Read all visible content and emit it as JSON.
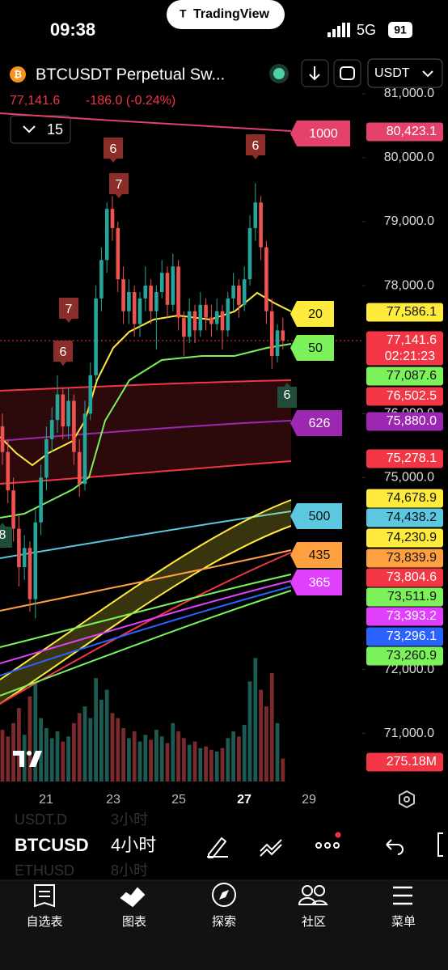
{
  "status_bar": {
    "time": "09:38",
    "app": "TradingView",
    "network": "5G",
    "battery": "91"
  },
  "header": {
    "symbol": "BTCUSDT Perpetual Sw...",
    "currency": "USDT",
    "quote": "77,141.6",
    "change": "-186.0 (-0.24%)",
    "interval": "15"
  },
  "chart": {
    "ylim": [
      70250,
      81200
    ],
    "yticks": [
      {
        "value": 81000,
        "label": "81,000.0"
      },
      {
        "value": 80000,
        "label": "80,000.0"
      },
      {
        "value": 79000,
        "label": "79,000.0"
      },
      {
        "value": 78000,
        "label": "78,000.0"
      },
      {
        "value": 76000,
        "label": "76,000.0"
      },
      {
        "value": 75000,
        "label": "75,000.0"
      },
      {
        "value": 72000,
        "label": "72,000.0"
      },
      {
        "value": 71000,
        "label": "71,000.0"
      }
    ],
    "dates": [
      "21",
      "23",
      "25",
      "27",
      "29"
    ],
    "candles": [
      [
        75800,
        76000,
        75200,
        75400
      ],
      [
        75400,
        75600,
        74600,
        74800
      ],
      [
        74800,
        75000,
        74000,
        74200
      ],
      [
        74200,
        74400,
        73300,
        73600
      ],
      [
        73600,
        74100,
        73400,
        73900
      ],
      [
        73900,
        74000,
        72900,
        73100
      ],
      [
        73100,
        74500,
        72800,
        74300
      ],
      [
        74300,
        75200,
        74100,
        75000
      ],
      [
        75000,
        75800,
        74800,
        75600
      ],
      [
        75600,
        76100,
        75400,
        75900
      ],
      [
        75900,
        76600,
        75700,
        76300
      ],
      [
        76300,
        76400,
        75600,
        75800
      ],
      [
        75800,
        76400,
        75600,
        76200
      ],
      [
        76200,
        76300,
        75200,
        75400
      ],
      [
        75400,
        75600,
        74700,
        74900
      ],
      [
        74900,
        76200,
        74800,
        76000
      ],
      [
        76000,
        76800,
        75900,
        76600
      ],
      [
        76600,
        78000,
        76500,
        77800
      ],
      [
        77800,
        78600,
        77600,
        78400
      ],
      [
        78400,
        79300,
        78200,
        79200
      ],
      [
        79200,
        79400,
        78700,
        78900
      ],
      [
        78900,
        79000,
        77900,
        78100
      ],
      [
        78100,
        78300,
        77400,
        77600
      ],
      [
        77600,
        78100,
        77400,
        77900
      ],
      [
        77900,
        78000,
        77200,
        77400
      ],
      [
        77400,
        77900,
        77200,
        77800
      ],
      [
        77800,
        78300,
        77600,
        78000
      ],
      [
        78000,
        78100,
        77400,
        77600
      ],
      [
        77600,
        78000,
        77000,
        77900
      ],
      [
        77900,
        78400,
        77800,
        78200
      ],
      [
        78200,
        78300,
        77500,
        77700
      ],
      [
        77700,
        78500,
        77600,
        78300
      ],
      [
        78300,
        78400,
        77300,
        77500
      ],
      [
        77500,
        77600,
        76900,
        77200
      ],
      [
        77200,
        77800,
        77100,
        77600
      ],
      [
        77600,
        77700,
        77100,
        77300
      ],
      [
        77300,
        77900,
        77200,
        77700
      ],
      [
        77700,
        77800,
        77300,
        77500
      ],
      [
        77500,
        77700,
        77200,
        77400
      ],
      [
        77400,
        77800,
        77300,
        77600
      ],
      [
        77600,
        77700,
        77000,
        77300
      ],
      [
        77300,
        77900,
        77200,
        77800
      ],
      [
        77800,
        78200,
        77600,
        78000
      ],
      [
        78000,
        78100,
        77500,
        77700
      ],
      [
        77700,
        78300,
        77600,
        78100
      ],
      [
        78100,
        79100,
        78000,
        78900
      ],
      [
        78900,
        79600,
        78700,
        79300
      ],
      [
        79300,
        79400,
        78400,
        78600
      ],
      [
        78600,
        78700,
        77400,
        77600
      ],
      [
        77600,
        77800,
        76700,
        76900
      ],
      [
        76900,
        77400,
        76800,
        77300
      ],
      [
        77300,
        77500,
        77000,
        77141.6
      ]
    ],
    "volumes": [
      620,
      540,
      700,
      880,
      560,
      1020,
      1180,
      760,
      640,
      520,
      600,
      480,
      540,
      700,
      820,
      900,
      760,
      1240,
      980,
      1100,
      820,
      760,
      640,
      520,
      600,
      480,
      560,
      500,
      620,
      540,
      460,
      700,
      600,
      520,
      440,
      480,
      400,
      420,
      380,
      360,
      400,
      520,
      600,
      540,
      680,
      1200,
      1480,
      1100,
      900,
      1300,
      700,
      275.18
    ],
    "price_tags": [
      {
        "text": "80,423.1",
        "color": "#e5426b"
      },
      {
        "text": "77,586.1",
        "color": "#ffeb3b"
      },
      {
        "text": "77,141.6",
        "color": "#f23645"
      },
      {
        "text": "77,087.6",
        "color": "#7cf25a"
      },
      {
        "text": "76,502.5",
        "color": "#f23645"
      },
      {
        "text": "75,880.0",
        "color": "#9c27b0"
      },
      {
        "text": "75,278.1",
        "color": "#f23645"
      },
      {
        "text": "74,678.9",
        "color": "#ffeb3b"
      },
      {
        "text": "74,438.2",
        "color": "#5bc8e0"
      },
      {
        "text": "74,230.9",
        "color": "#ffeb3b"
      },
      {
        "text": "73,839.9",
        "color": "#ffa040"
      },
      {
        "text": "73,804.6",
        "color": "#f23645"
      },
      {
        "text": "73,511.9",
        "color": "#7cf25a"
      },
      {
        "text": "73,393.2",
        "color": "#e040fb"
      },
      {
        "text": "73,296.1",
        "color": "#2962ff"
      },
      {
        "text": "73,260.9",
        "color": "#7cf25a"
      },
      {
        "text": "275.18M",
        "color": "#f23645"
      }
    ],
    "countdown": "02:21:23",
    "ma_labels": [
      {
        "text": "1000",
        "color": "#e5426b"
      },
      {
        "text": "20",
        "color": "#ffeb3b"
      },
      {
        "text": "50",
        "color": "#7cf25a"
      },
      {
        "text": "626",
        "color": "#9c27b0"
      },
      {
        "text": "500",
        "color": "#5bc8e0"
      },
      {
        "text": "435",
        "color": "#ffa040"
      },
      {
        "text": "365",
        "color": "#e040fb"
      }
    ],
    "markers": [
      "6",
      "7",
      "6",
      "7",
      "6",
      "6",
      "8"
    ]
  },
  "toolbar": {
    "symbol": "BTCUSD",
    "interval": "4小时",
    "prev_symbol": "USDT.D",
    "prev_interval": "3小时",
    "next_symbol": "ETHUSD",
    "next_interval": "8小时"
  },
  "nav": [
    "自选表",
    "图表",
    "探索",
    "社区",
    "菜单"
  ]
}
